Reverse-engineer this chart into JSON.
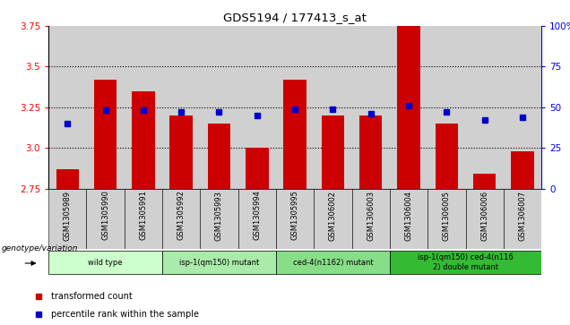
{
  "title": "GDS5194 / 177413_s_at",
  "samples": [
    "GSM1305989",
    "GSM1305990",
    "GSM1305991",
    "GSM1305992",
    "GSM1305993",
    "GSM1305994",
    "GSM1305995",
    "GSM1306002",
    "GSM1306003",
    "GSM1306004",
    "GSM1306005",
    "GSM1306006",
    "GSM1306007"
  ],
  "bar_values": [
    2.87,
    3.42,
    3.35,
    3.2,
    3.15,
    3.0,
    3.42,
    3.2,
    3.2,
    3.75,
    3.15,
    2.84,
    2.98
  ],
  "percentile_values": [
    40,
    48,
    48,
    47,
    47,
    45,
    49,
    49,
    46,
    51,
    47,
    42,
    44
  ],
  "ylim_left": [
    2.75,
    3.75
  ],
  "ylim_right": [
    0,
    100
  ],
  "yticks_left": [
    2.75,
    3.0,
    3.25,
    3.5,
    3.75
  ],
  "yticks_right": [
    0,
    25,
    50,
    75,
    100
  ],
  "bar_color": "#cc0000",
  "percentile_color": "#0000cc",
  "bar_baseline": 2.75,
  "groups": [
    {
      "label": "wild type",
      "start": 0,
      "end": 3,
      "color": "#ccffcc"
    },
    {
      "label": "isp-1(qm150) mutant",
      "start": 3,
      "end": 6,
      "color": "#aaeaaa"
    },
    {
      "label": "ced-4(n1162) mutant",
      "start": 6,
      "end": 9,
      "color": "#88dd88"
    },
    {
      "label": "isp-1(qm150) ced-4(n116\n2) double mutant",
      "start": 9,
      "end": 13,
      "color": "#33bb33"
    }
  ],
  "genotype_label": "genotype/variation",
  "legend_bar": "transformed count",
  "legend_pct": "percentile rank within the sample",
  "bg_color": "#d0d0d0",
  "plot_bg": "#ffffff"
}
